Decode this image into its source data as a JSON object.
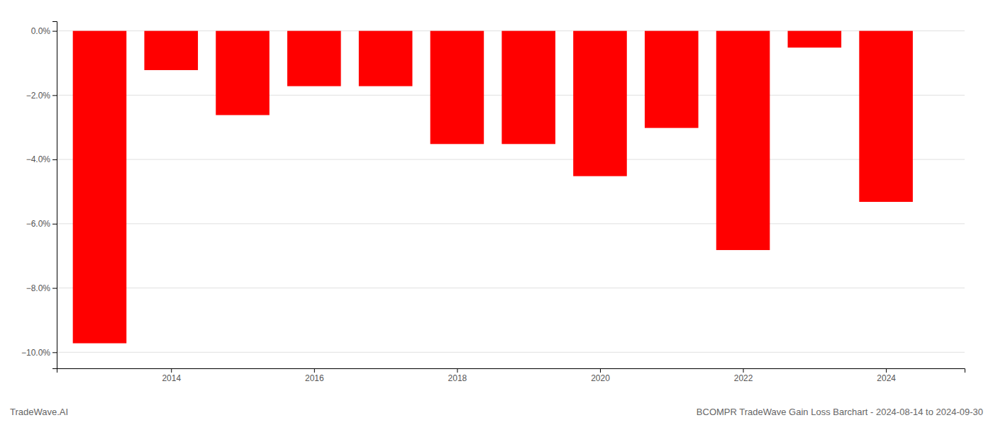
{
  "chart_data": {
    "type": "bar",
    "title": "BCOMPR TradeWave Gain Loss Barchart - 2024-08-14 to 2024-09-30",
    "annotations": [
      "TradeWave.AI"
    ],
    "x": [
      2013,
      2014,
      2015,
      2016,
      2017,
      2018,
      2019,
      2020,
      2021,
      2022,
      2023,
      2024
    ],
    "values": [
      -9.72,
      -1.22,
      -2.62,
      -1.72,
      -1.72,
      -3.52,
      -3.52,
      -4.52,
      -3.02,
      -6.82,
      -0.52,
      -5.32
    ],
    "color": "#ff0000",
    "xlim": [
      2012.4,
      2025.1
    ],
    "xticks": [
      2014,
      2016,
      2018,
      2020,
      2022,
      2024
    ],
    "ylim": [
      -10.5,
      0.3
    ],
    "yticks": [
      {
        "value": 0.0,
        "label": "0.0%"
      },
      {
        "value": -2.0,
        "label": "−2.0%"
      },
      {
        "value": -4.0,
        "label": "−4.0%"
      },
      {
        "value": -6.0,
        "label": "−6.0%"
      },
      {
        "value": -8.0,
        "label": "−8.0%"
      },
      {
        "value": -10.0,
        "label": "−10.0%"
      }
    ],
    "grid": true
  }
}
